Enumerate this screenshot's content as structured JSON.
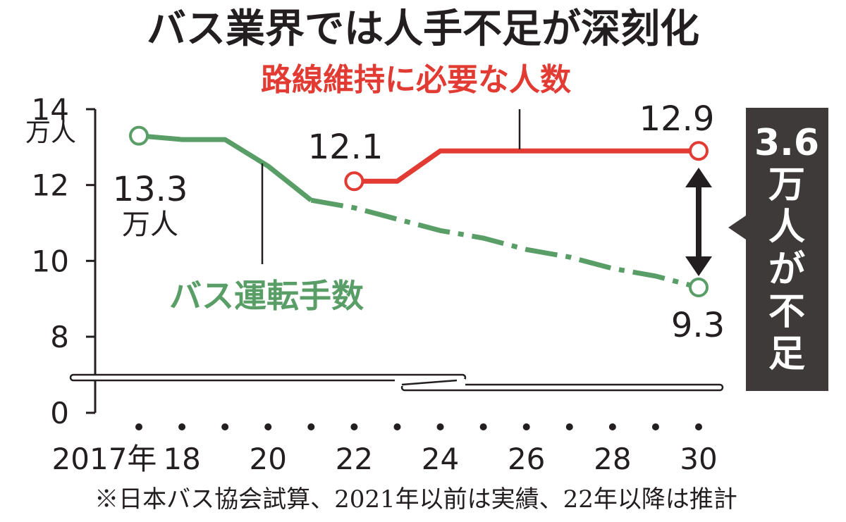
{
  "title": "バス業界では人手不足が深刻化",
  "note": "※日本バス協会試算、2021年以前は実績、22年以降は推計",
  "callout": {
    "value": "3.6",
    "lines": [
      "万",
      "人",
      "が",
      "不",
      "足"
    ],
    "background": "#3e3a39"
  },
  "colors": {
    "required": "#e13b33",
    "drivers": "#5a9e67",
    "axis": "#231f20"
  },
  "chart_data": {
    "type": "line",
    "subtitle": "",
    "ylabel": "万人",
    "yticks": [
      0,
      8,
      10,
      12,
      14
    ],
    "ylim": [
      0,
      14
    ],
    "y_axis_break": true,
    "x_tick_labels": [
      {
        "x": 2017,
        "label": "2017年"
      },
      {
        "x": 2018,
        "label": "18"
      },
      {
        "x": 2020,
        "label": "20"
      },
      {
        "x": 2022,
        "label": "22"
      },
      {
        "x": 2024,
        "label": "24"
      },
      {
        "x": 2026,
        "label": "26"
      },
      {
        "x": 2028,
        "label": "28"
      },
      {
        "x": 2030,
        "label": "30"
      }
    ],
    "x_dots": [
      2017,
      2018,
      2019,
      2020,
      2021,
      2022,
      2023,
      2024,
      2025,
      2026,
      2027,
      2028,
      2029,
      2030
    ],
    "series": [
      {
        "name": "路線維持に必要な人数",
        "color": "#e13b33",
        "style": "solid",
        "points": [
          {
            "x": 2022,
            "y": 12.1
          },
          {
            "x": 2023,
            "y": 12.1
          },
          {
            "x": 2024,
            "y": 12.9
          },
          {
            "x": 2030,
            "y": 12.9
          }
        ],
        "labels": [
          {
            "x": 2022,
            "text": "12.1",
            "unit": ""
          },
          {
            "x": 2030,
            "text": "12.9",
            "unit": ""
          }
        ]
      },
      {
        "name": "バス運転手数",
        "color": "#5a9e67",
        "style": "solid-then-dashed",
        "dashed_from_x": 2021,
        "points": [
          {
            "x": 2017,
            "y": 13.3
          },
          {
            "x": 2018,
            "y": 13.2
          },
          {
            "x": 2019,
            "y": 13.2
          },
          {
            "x": 2020,
            "y": 12.5
          },
          {
            "x": 2021,
            "y": 11.6
          },
          {
            "x": 2022,
            "y": 11.4
          },
          {
            "x": 2023,
            "y": 11.1
          },
          {
            "x": 2024,
            "y": 10.8
          },
          {
            "x": 2025,
            "y": 10.6
          },
          {
            "x": 2026,
            "y": 10.3
          },
          {
            "x": 2027,
            "y": 10.1
          },
          {
            "x": 2028,
            "y": 9.8
          },
          {
            "x": 2029,
            "y": 9.6
          },
          {
            "x": 2030,
            "y": 9.3
          }
        ],
        "labels": [
          {
            "x": 2017,
            "text": "13.3",
            "unit": "万人"
          },
          {
            "x": 2030,
            "text": "9.3",
            "unit": ""
          }
        ]
      }
    ]
  }
}
